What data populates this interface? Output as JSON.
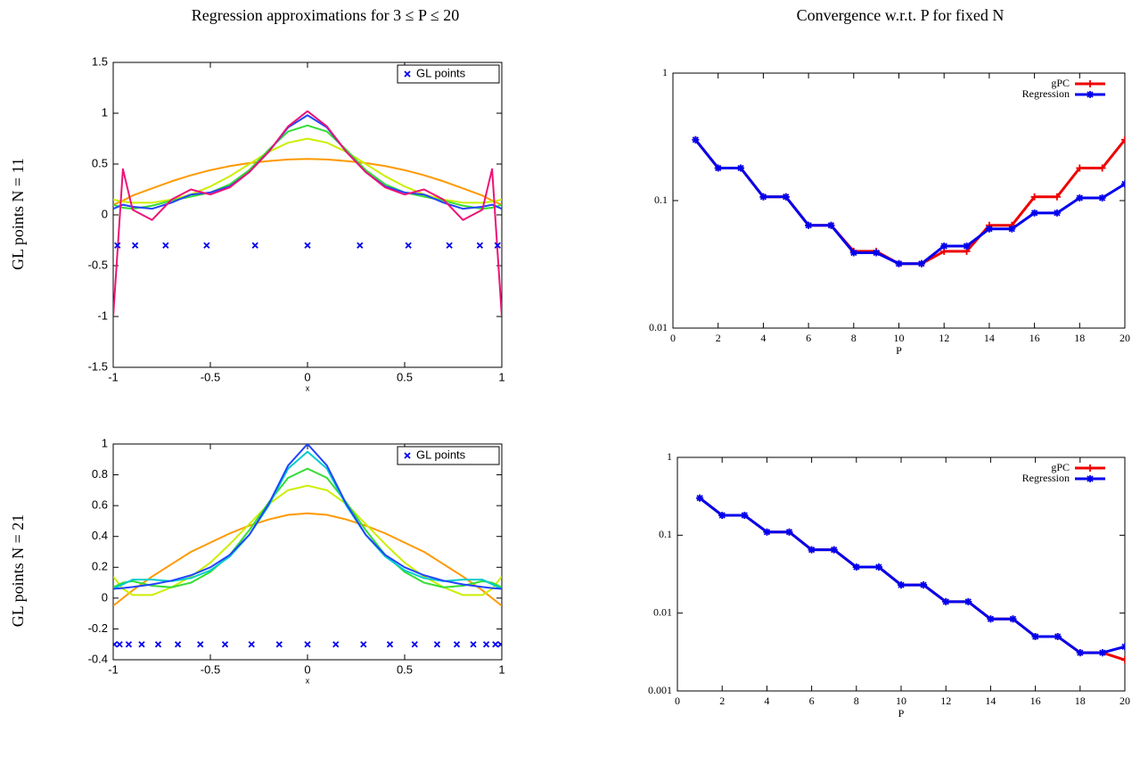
{
  "column_titles": [
    "Regression approximations for 3 ≤ P ≤ 20",
    "Convergence w.r.t. P for fixed N"
  ],
  "row_labels": [
    "GL points N = 11",
    "GL points N = 21"
  ],
  "chart_data": [
    {
      "type": "line",
      "xlabel": "x",
      "xlim": [
        -1,
        1
      ],
      "xticks": [
        -1,
        -0.5,
        0,
        0.5,
        1
      ],
      "ylim": [
        -1.5,
        1.5
      ],
      "yticks": [
        -1.5,
        -1,
        -0.5,
        0,
        0.5,
        1,
        1.5
      ],
      "legend": "upper right",
      "x": [
        -1,
        -0.95,
        -0.9,
        -0.8,
        -0.7,
        -0.6,
        -0.5,
        -0.4,
        -0.3,
        -0.2,
        -0.1,
        0,
        0.1,
        0.2,
        0.3,
        0.4,
        0.5,
        0.6,
        0.7,
        0.8,
        0.9,
        0.95,
        1
      ],
      "series": [
        {
          "color": "#ff9900",
          "values": [
            0.1,
            0.14,
            0.19,
            0.26,
            0.33,
            0.39,
            0.44,
            0.48,
            0.51,
            0.53,
            0.545,
            0.55,
            0.545,
            0.53,
            0.51,
            0.48,
            0.44,
            0.39,
            0.33,
            0.26,
            0.19,
            0.14,
            0.1
          ]
        },
        {
          "color": "#ccee00",
          "values": [
            0.15,
            0.13,
            0.12,
            0.12,
            0.15,
            0.2,
            0.28,
            0.38,
            0.5,
            0.62,
            0.71,
            0.75,
            0.71,
            0.62,
            0.5,
            0.38,
            0.28,
            0.2,
            0.15,
            0.12,
            0.12,
            0.13,
            0.15
          ]
        },
        {
          "color": "#33dd33",
          "values": [
            0.1,
            0.07,
            0.06,
            0.09,
            0.14,
            0.18,
            0.22,
            0.3,
            0.44,
            0.64,
            0.82,
            0.88,
            0.82,
            0.64,
            0.44,
            0.3,
            0.22,
            0.18,
            0.14,
            0.09,
            0.06,
            0.07,
            0.1
          ]
        },
        {
          "color": "#2244ff",
          "values": [
            0.06,
            0.1,
            0.08,
            0.06,
            0.12,
            0.2,
            0.22,
            0.28,
            0.42,
            0.62,
            0.86,
            0.98,
            0.86,
            0.62,
            0.42,
            0.28,
            0.22,
            0.2,
            0.12,
            0.06,
            0.08,
            0.1,
            0.06
          ]
        },
        {
          "color": "#ee1177",
          "values": [
            -1,
            0.45,
            0.05,
            -0.05,
            0.15,
            0.25,
            0.2,
            0.27,
            0.42,
            0.62,
            0.87,
            1.02,
            0.87,
            0.62,
            0.42,
            0.27,
            0.2,
            0.25,
            0.15,
            -0.05,
            0.05,
            0.45,
            -1
          ]
        },
        {
          "type": "scatter",
          "name": "GL points",
          "color": "#0000ee",
          "marker": "x",
          "x": [
            -0.9782,
            -0.8871,
            -0.7301,
            -0.5191,
            -0.2696,
            0,
            0.2696,
            0.5191,
            0.7301,
            0.8871,
            0.9782
          ],
          "values": [
            -0.3,
            -0.3,
            -0.3,
            -0.3,
            -0.3,
            -0.3,
            -0.3,
            -0.3,
            -0.3,
            -0.3,
            -0.3
          ]
        }
      ]
    },
    {
      "type": "line",
      "xlabel": "P",
      "xlim": [
        0,
        20
      ],
      "xticks": [
        0,
        2,
        4,
        6,
        8,
        10,
        12,
        14,
        16,
        18,
        20
      ],
      "log_scale": true,
      "ylim": [
        0.01,
        1
      ],
      "yticks": [
        0.01,
        0.1,
        1
      ],
      "legend": "upper right",
      "x": [
        1,
        2,
        3,
        4,
        5,
        6,
        7,
        8,
        9,
        10,
        11,
        12,
        13,
        14,
        15,
        16,
        17,
        18,
        19,
        20
      ],
      "series": [
        {
          "name": "gPC",
          "color": "#ee0000",
          "marker": "plus",
          "values": [
            0.3,
            0.18,
            0.18,
            0.107,
            0.107,
            0.064,
            0.064,
            0.04,
            0.04,
            0.032,
            0.032,
            0.04,
            0.04,
            0.064,
            0.064,
            0.107,
            0.107,
            0.18,
            0.18,
            0.3
          ]
        },
        {
          "name": "Regression",
          "color": "#0000ee",
          "marker": "star",
          "values": [
            0.3,
            0.18,
            0.18,
            0.107,
            0.107,
            0.064,
            0.064,
            0.039,
            0.039,
            0.032,
            0.032,
            0.044,
            0.044,
            0.06,
            0.06,
            0.08,
            0.08,
            0.105,
            0.105,
            0.135
          ]
        }
      ]
    },
    {
      "type": "line",
      "xlabel": "x",
      "xlim": [
        -1,
        1
      ],
      "xticks": [
        -1,
        -0.5,
        0,
        0.5,
        1
      ],
      "ylim": [
        -0.4,
        1
      ],
      "yticks": [
        -0.4,
        -0.2,
        0,
        0.2,
        0.4,
        0.6,
        0.8,
        1
      ],
      "legend": "upper right",
      "x": [
        -1,
        -0.95,
        -0.9,
        -0.8,
        -0.7,
        -0.6,
        -0.5,
        -0.4,
        -0.3,
        -0.2,
        -0.1,
        0,
        0.1,
        0.2,
        0.3,
        0.4,
        0.5,
        0.6,
        0.7,
        0.8,
        0.9,
        0.95,
        1
      ],
      "series": [
        {
          "color": "#ff9900",
          "values": [
            -0.05,
            0.0,
            0.05,
            0.14,
            0.22,
            0.3,
            0.36,
            0.42,
            0.47,
            0.51,
            0.54,
            0.55,
            0.54,
            0.51,
            0.47,
            0.42,
            0.36,
            0.3,
            0.22,
            0.14,
            0.05,
            0.0,
            -0.05
          ]
        },
        {
          "color": "#ccee00",
          "values": [
            0.14,
            0.06,
            0.02,
            0.02,
            0.07,
            0.14,
            0.23,
            0.35,
            0.48,
            0.61,
            0.7,
            0.73,
            0.7,
            0.61,
            0.48,
            0.35,
            0.23,
            0.14,
            0.07,
            0.02,
            0.02,
            0.06,
            0.14
          ]
        },
        {
          "color": "#33dd33",
          "values": [
            0.07,
            0.1,
            0.11,
            0.08,
            0.07,
            0.1,
            0.17,
            0.28,
            0.44,
            0.62,
            0.78,
            0.84,
            0.78,
            0.62,
            0.44,
            0.28,
            0.17,
            0.1,
            0.07,
            0.08,
            0.11,
            0.1,
            0.07
          ]
        },
        {
          "color": "#00cccc",
          "values": [
            0.06,
            0.09,
            0.12,
            0.12,
            0.11,
            0.13,
            0.18,
            0.27,
            0.41,
            0.6,
            0.84,
            0.95,
            0.84,
            0.6,
            0.41,
            0.27,
            0.18,
            0.13,
            0.11,
            0.12,
            0.12,
            0.09,
            0.06
          ]
        },
        {
          "color": "#2244ff",
          "values": [
            0.06,
            0.065,
            0.072,
            0.089,
            0.113,
            0.148,
            0.2,
            0.28,
            0.41,
            0.61,
            0.86,
            1,
            0.86,
            0.61,
            0.41,
            0.28,
            0.2,
            0.148,
            0.113,
            0.089,
            0.072,
            0.065,
            0.06
          ]
        },
        {
          "type": "scatter",
          "name": "GL points",
          "color": "#0000ee",
          "marker": "x",
          "x": [
            -0.9938,
            -0.9672,
            -0.92,
            -0.8533,
            -0.7684,
            -0.6671,
            -0.5516,
            -0.4243,
            -0.288,
            -0.1455,
            0,
            0.1455,
            0.288,
            0.4243,
            0.5516,
            0.6671,
            0.7684,
            0.8533,
            0.92,
            0.9672,
            0.9938
          ],
          "values": [
            -0.3,
            -0.3,
            -0.3,
            -0.3,
            -0.3,
            -0.3,
            -0.3,
            -0.3,
            -0.3,
            -0.3,
            -0.3,
            -0.3,
            -0.3,
            -0.3,
            -0.3,
            -0.3,
            -0.3,
            -0.3,
            -0.3,
            -0.3,
            -0.3
          ]
        }
      ]
    },
    {
      "type": "line",
      "xlabel": "P",
      "xlim": [
        0,
        20
      ],
      "xticks": [
        0,
        2,
        4,
        6,
        8,
        10,
        12,
        14,
        16,
        18,
        20
      ],
      "log_scale": true,
      "ylim": [
        0.001,
        1
      ],
      "yticks": [
        0.001,
        0.01,
        0.1,
        1
      ],
      "legend": "upper right",
      "x": [
        1,
        2,
        3,
        4,
        5,
        6,
        7,
        8,
        9,
        10,
        11,
        12,
        13,
        14,
        15,
        16,
        17,
        18,
        19,
        20
      ],
      "series": [
        {
          "name": "gPC",
          "color": "#ee0000",
          "marker": "plus",
          "values": [
            0.3,
            0.18,
            0.18,
            0.11,
            0.11,
            0.065,
            0.065,
            0.039,
            0.039,
            0.023,
            0.023,
            0.014,
            0.014,
            0.0084,
            0.0084,
            0.005,
            0.005,
            0.0031,
            0.0031,
            0.0025
          ]
        },
        {
          "name": "Regression",
          "color": "#0000ee",
          "marker": "star",
          "values": [
            0.3,
            0.18,
            0.18,
            0.11,
            0.11,
            0.065,
            0.065,
            0.039,
            0.039,
            0.023,
            0.023,
            0.014,
            0.014,
            0.0084,
            0.0084,
            0.005,
            0.005,
            0.0031,
            0.0031,
            0.0037
          ]
        }
      ]
    }
  ]
}
